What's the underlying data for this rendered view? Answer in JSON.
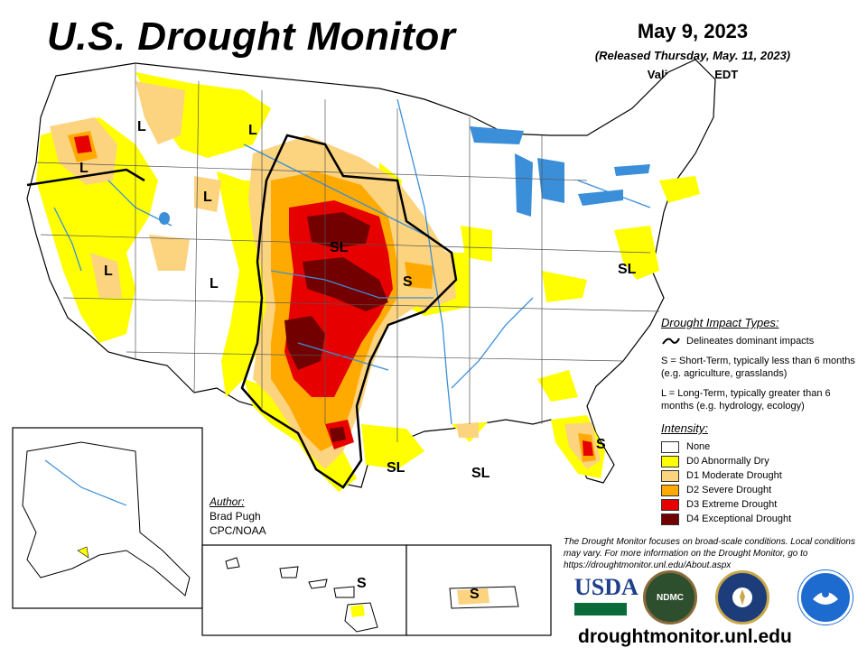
{
  "header": {
    "title": "U.S. Drought Monitor",
    "date": "May 9, 2023",
    "released": "(Released Thursday, May. 11, 2023)",
    "valid": "Valid 8 a.m. EDT"
  },
  "impact_labels": [
    "L",
    "L",
    "L",
    "L",
    "L",
    "L",
    "SL",
    "S",
    "SL",
    "SL",
    "SL",
    "S",
    "S",
    "S"
  ],
  "legend": {
    "impact_title": "Drought Impact Types:",
    "delineates": "Delineates dominant impacts",
    "short_term": "S = Short-Term, typically less than 6 months (e.g. agriculture, grasslands)",
    "long_term": "L = Long-Term, typically greater than 6 months (e.g. hydrology, ecology)",
    "intensity_title": "Intensity:",
    "categories": [
      {
        "label": "None",
        "color": "#ffffff"
      },
      {
        "label": "D0 Abnormally Dry",
        "color": "#ffff00"
      },
      {
        "label": "D1 Moderate Drought",
        "color": "#fcd37f"
      },
      {
        "label": "D2 Severe Drought",
        "color": "#ffaa00"
      },
      {
        "label": "D3 Extreme Drought",
        "color": "#e60000"
      },
      {
        "label": "D4 Exceptional Drought",
        "color": "#730000"
      }
    ]
  },
  "author": {
    "label": "Author:",
    "name": "Brad Pugh",
    "org": "CPC/NOAA"
  },
  "disclaimer": "The Drought Monitor focuses on broad-scale conditions. Local conditions may vary. For more information on the Drought Monitor, go to https://droughtmonitor.unl.edu/About.aspx",
  "logos": {
    "usda": "USDA",
    "ndmc": "NDMC"
  },
  "website": "droughtmonitor.unl.edu",
  "colors": {
    "water": "#3b8fd9",
    "border": "#000000"
  }
}
